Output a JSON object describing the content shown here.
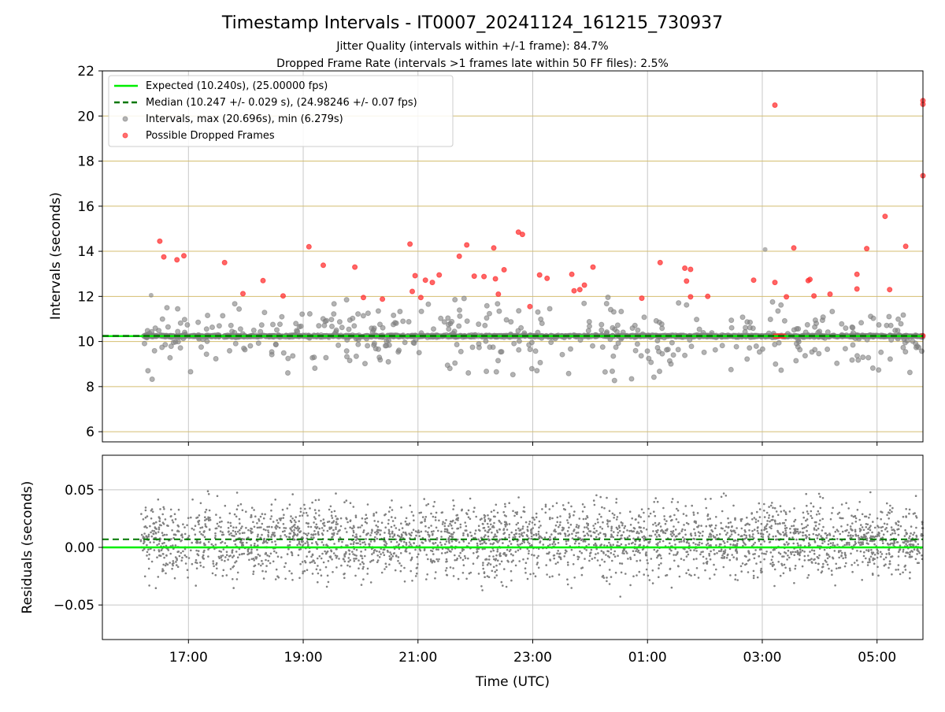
{
  "chart_data": {
    "title": "Timestamp Intervals - IT0007_20241124_161215_730937",
    "subtitle_lines": [
      "Jitter Quality (intervals within +/-1 frame): 84.7%",
      "Dropped Frame Rate (intervals >1 frames late within 50 FF files): 2.5%"
    ],
    "xlabel": "Time (UTC)",
    "x_tick_labels": [
      "17:00",
      "19:00",
      "21:00",
      "23:00",
      "01:00",
      "03:00",
      "05:00"
    ],
    "x_range_hours": [
      15.5,
      29.8
    ],
    "x_tick_hours": [
      17,
      19,
      21,
      23,
      25,
      27,
      29
    ],
    "colors": {
      "expected": "#00ee00",
      "median": "#007700",
      "intervals": "#808080",
      "dropped": "#ff3333",
      "grid_top": "#d4be70",
      "grid": "#c8c8c8"
    },
    "charts": [
      {
        "type": "scatter",
        "ylabel": "Intervals (seconds)",
        "ylim": [
          5.55,
          22
        ],
        "y_ticks": [
          6,
          8,
          10,
          12,
          14,
          16,
          18,
          20,
          22
        ],
        "y_tick_labels": [
          "6",
          "8",
          "10",
          "12",
          "14",
          "16",
          "18",
          "20",
          "22"
        ],
        "expected_value": 10.24,
        "median_value": 10.247,
        "legend_position": "top-left",
        "legend": [
          {
            "label": "Expected (10.240s), (25.00000 fps)",
            "style": "solid-line",
            "color": "#00ee00"
          },
          {
            "label": "Median (10.247 +/- 0.029 s), (24.98246 +/- 0.07 fps)",
            "style": "dashed-line",
            "color": "#007700"
          },
          {
            "label": "Intervals, max (20.696s), min (6.279s)",
            "style": "marker",
            "color": "#808080"
          },
          {
            "label": "Possible Dropped Frames",
            "style": "marker",
            "color": "#ff3333"
          }
        ],
        "dropped_frames": [
          [
            16.5,
            14.45
          ],
          [
            16.57,
            13.75
          ],
          [
            16.8,
            13.62
          ],
          [
            16.92,
            13.8
          ],
          [
            17.63,
            13.5
          ],
          [
            17.95,
            12.12
          ],
          [
            18.3,
            12.7
          ],
          [
            18.65,
            12.02
          ],
          [
            19.1,
            14.2
          ],
          [
            19.35,
            13.38
          ],
          [
            19.9,
            13.3
          ],
          [
            20.05,
            11.95
          ],
          [
            20.38,
            11.88
          ],
          [
            20.86,
            14.32
          ],
          [
            20.9,
            12.22
          ],
          [
            20.95,
            12.92
          ],
          [
            21.05,
            11.95
          ],
          [
            21.13,
            12.72
          ],
          [
            21.25,
            12.62
          ],
          [
            21.37,
            12.95
          ],
          [
            21.72,
            13.78
          ],
          [
            21.85,
            14.28
          ],
          [
            21.98,
            12.9
          ],
          [
            22.15,
            12.88
          ],
          [
            22.32,
            14.15
          ],
          [
            22.35,
            12.78
          ],
          [
            22.4,
            12.1
          ],
          [
            22.5,
            13.18
          ],
          [
            22.75,
            14.85
          ],
          [
            22.82,
            14.75
          ],
          [
            22.95,
            11.55
          ],
          [
            23.12,
            12.95
          ],
          [
            23.25,
            12.8
          ],
          [
            23.68,
            12.98
          ],
          [
            23.72,
            12.25
          ],
          [
            23.82,
            12.3
          ],
          [
            23.9,
            12.5
          ],
          [
            24.05,
            13.3
          ],
          [
            24.9,
            11.92
          ],
          [
            25.22,
            13.5
          ],
          [
            25.65,
            13.25
          ],
          [
            25.68,
            12.68
          ],
          [
            25.75,
            13.2
          ],
          [
            25.75,
            11.98
          ],
          [
            26.05,
            12.0
          ],
          [
            26.85,
            12.72
          ],
          [
            27.22,
            20.48
          ],
          [
            27.22,
            12.62
          ],
          [
            27.42,
            11.98
          ],
          [
            27.55,
            14.15
          ],
          [
            27.8,
            12.7
          ],
          [
            27.83,
            12.75
          ],
          [
            27.9,
            12.02
          ],
          [
            28.18,
            12.1
          ],
          [
            28.65,
            12.98
          ],
          [
            28.65,
            12.33
          ],
          [
            28.82,
            14.12
          ],
          [
            29.14,
            15.55
          ],
          [
            29.22,
            12.3
          ],
          [
            29.5,
            14.22
          ],
          [
            29.8,
            20.52
          ],
          [
            29.8,
            20.68
          ],
          [
            29.8,
            17.35
          ],
          [
            29.8,
            10.25
          ],
          [
            27.22,
            10.24
          ],
          [
            27.26,
            10.24
          ],
          [
            27.3,
            10.24
          ],
          [
            27.34,
            10.24
          ],
          [
            27.38,
            10.24
          ]
        ],
        "scatter_spread_note": ""
      },
      {
        "type": "scatter",
        "ylabel": "Residuals (seconds)",
        "ylim": [
          -0.08,
          0.08
        ],
        "y_ticks": [
          0.05,
          0.0,
          -0.05
        ],
        "y_tick_labels": [
          "0.05",
          "0.00",
          "−0.05"
        ],
        "expected_value": 0.0,
        "median_value": 0.007
      }
    ]
  }
}
